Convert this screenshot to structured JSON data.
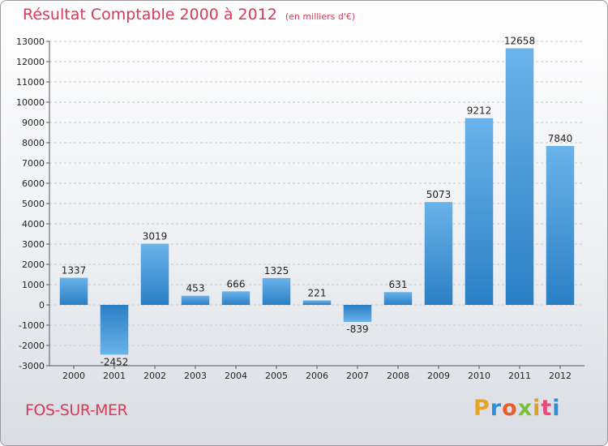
{
  "header": {
    "title": "Résultat Comptable 2000 à 2012",
    "subtitle": "(en milliers d'€)"
  },
  "footer": {
    "commune": "FOS-SUR-MER",
    "logo": [
      "P",
      "r",
      "o",
      "x",
      "i",
      "t",
      "i"
    ],
    "logo_colors": [
      "#e8a322",
      "#2e8fd6",
      "#e85d2a",
      "#7abf3a",
      "#d9a12a",
      "#e84a7a",
      "#2e8fd6"
    ]
  },
  "chart_data": {
    "type": "bar",
    "categories": [
      "2000",
      "2001",
      "2002",
      "2003",
      "2004",
      "2005",
      "2006",
      "2007",
      "2008",
      "2009",
      "2010",
      "2011",
      "2012"
    ],
    "values": [
      1337,
      -2452,
      3019,
      453,
      666,
      1325,
      221,
      -839,
      631,
      5073,
      9212,
      12658,
      7840
    ],
    "value_labels": [
      "1337",
      "-2452",
      "3019",
      "453",
      "666",
      "1325",
      "221",
      "-839",
      "631",
      "5073",
      "9212",
      "12658",
      "7840"
    ],
    "ylim": [
      -3000,
      13000
    ],
    "yticks": [
      "-3000",
      "-2000",
      "-1000",
      "0",
      "1000",
      "2000",
      "3000",
      "4000",
      "5000",
      "6000",
      "7000",
      "8000",
      "9000",
      "10000",
      "11000",
      "12000",
      "13000"
    ],
    "grid": true,
    "colors": {
      "bar_light": "#6ab3ea",
      "bar_dark": "#2a7fc4",
      "grid": "#c8c8c8",
      "axis": "#555555"
    }
  }
}
